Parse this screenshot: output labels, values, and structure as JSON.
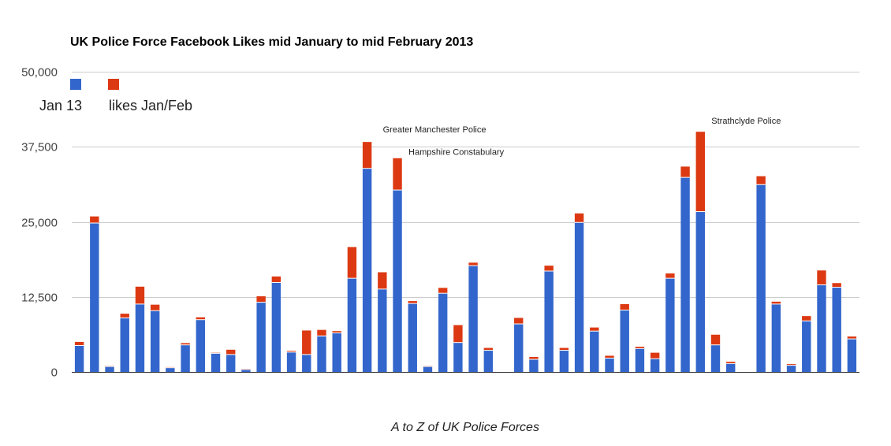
{
  "chart_data": {
    "type": "bar",
    "stacked": true,
    "title": "UK Police Force Facebook Likes mid January to mid February 2013",
    "xlabel": "A to Z of UK Police Forces",
    "ylabel": "",
    "ylim": [
      0,
      50000
    ],
    "yticks": [
      0,
      12500,
      25000,
      37500,
      50000
    ],
    "ytick_labels": [
      "0",
      "12,500",
      "25,000",
      "37,500",
      "50,000"
    ],
    "grid": true,
    "legend_position": "top-left",
    "series": [
      {
        "name": "Jan 13",
        "color": "#3366cc",
        "values": [
          4400,
          24800,
          900,
          9000,
          11300,
          10200,
          700,
          4500,
          8700,
          3100,
          2900,
          400,
          11600,
          14900,
          3300,
          2900,
          6000,
          6500,
          15600,
          33900,
          13800,
          30300,
          11400,
          900,
          13100,
          4900,
          17700,
          3600,
          null,
          8000,
          2100,
          16800,
          3600,
          24900,
          6800,
          2300,
          10300,
          3900,
          2200,
          15600,
          32400,
          26700,
          4500,
          1400,
          null,
          31200,
          11300,
          1100,
          8500,
          14500,
          14100,
          5500
        ]
      },
      {
        "name": "likes Jan/Feb",
        "color": "#dc3912",
        "values": [
          600,
          1100,
          100,
          700,
          2900,
          1000,
          100,
          300,
          400,
          100,
          800,
          100,
          1000,
          1000,
          200,
          4000,
          1000,
          300,
          5200,
          4400,
          2800,
          5300,
          400,
          100,
          900,
          2900,
          500,
          400,
          null,
          1000,
          400,
          900,
          400,
          1500,
          600,
          400,
          1000,
          300,
          1000,
          800,
          1800,
          13300,
          1700,
          300,
          null,
          1400,
          400,
          200,
          800,
          2400,
          700,
          400
        ]
      }
    ],
    "annotations": [
      {
        "text": "Greater Manchester Police",
        "bar_index": 19
      },
      {
        "text": "Hampshire Constabulary",
        "bar_index": 21
      },
      {
        "text": "Strathclyde Police",
        "bar_index": 41
      }
    ]
  },
  "legend": {
    "items": [
      {
        "label": "Jan 13",
        "color": "#3366cc"
      },
      {
        "label": "likes Jan/Feb",
        "color": "#dc3912"
      }
    ]
  }
}
